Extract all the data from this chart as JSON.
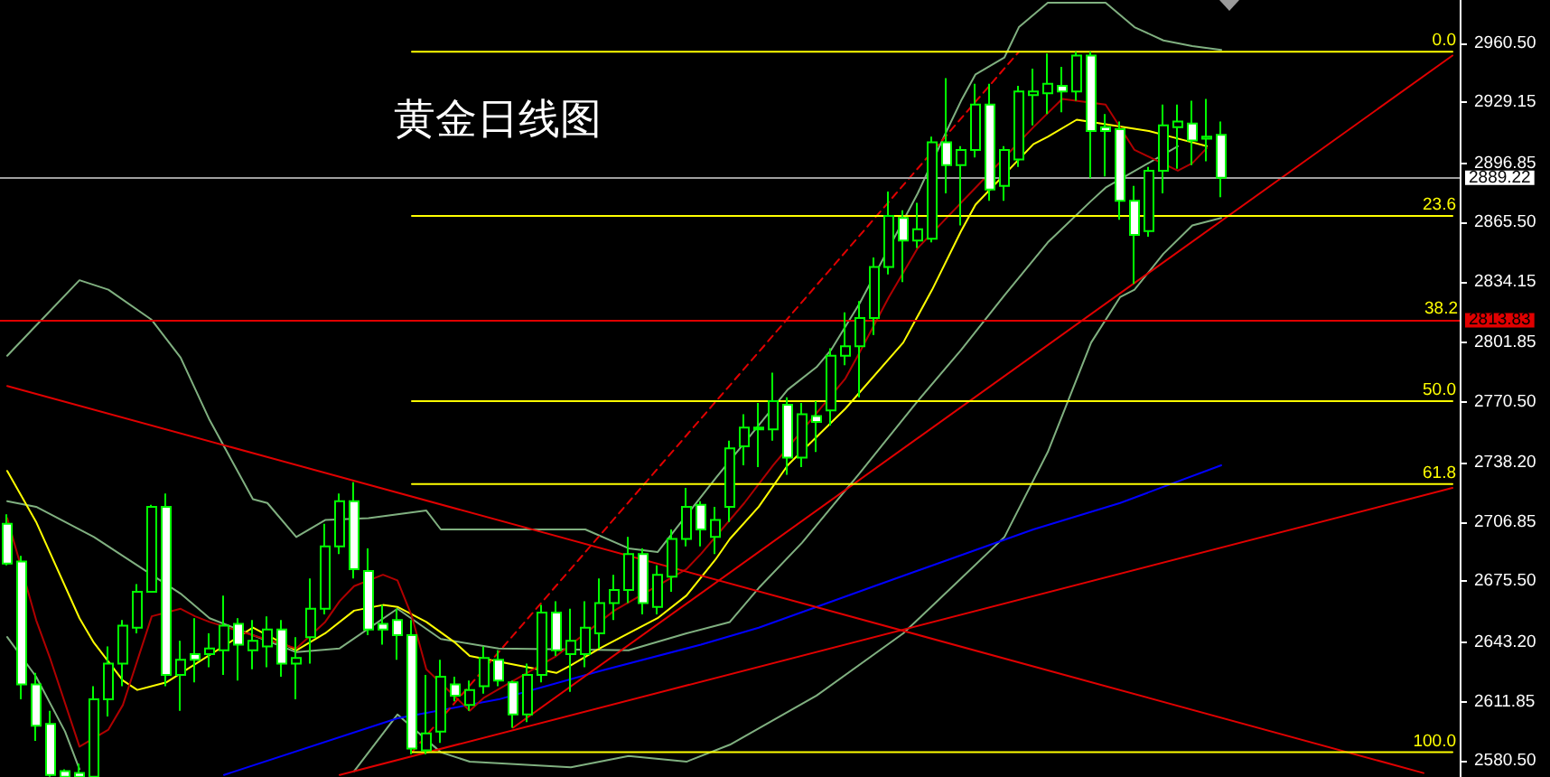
{
  "chart_data": {
    "type": "candlestick",
    "title": "黄金日线图",
    "categories": [
      null,
      null,
      null,
      null,
      null,
      null,
      null,
      null,
      null,
      null,
      null,
      null,
      null,
      null,
      null,
      null,
      null,
      null,
      null,
      null,
      null,
      null,
      null,
      null,
      null,
      null,
      null,
      null,
      null,
      null,
      null,
      null,
      null,
      null,
      null,
      null,
      null,
      null,
      null,
      null,
      null,
      null,
      null,
      null,
      null,
      null,
      null,
      null,
      null,
      null,
      null,
      null,
      null,
      null,
      null,
      null,
      null,
      null,
      null,
      null,
      null,
      null,
      null,
      null,
      null,
      null,
      null,
      null,
      null,
      null,
      null,
      null,
      null,
      null,
      null,
      null,
      null,
      null,
      null,
      null,
      null,
      null,
      null,
      null,
      null,
      null,
      null,
      null,
      null,
      null,
      null,
      null,
      null,
      null,
      null,
      null,
      null,
      null,
      null,
      null,
      null
    ],
    "ylim": [
      2571.9,
      2983.4
    ],
    "yticks": [
      {
        "value": 2960.5,
        "label": "2960.50"
      },
      2929.15,
      2896.85,
      {
        "value": 2865.5,
        "label": "2865.50"
      },
      2834.15,
      2801.85,
      {
        "value": 2770.5,
        "label": "2770.50"
      },
      {
        "value": 2738.2,
        "label": "2738.20"
      },
      2706.85,
      {
        "value": 2675.5,
        "label": "2675.50"
      },
      {
        "value": 2643.2,
        "label": "2643.20"
      },
      2611.85,
      {
        "value": 2580.5,
        "label": "2580.50"
      }
    ],
    "tick_labels": "y",
    "ref_lines": [
      {
        "axis": "y",
        "value": 2889.22,
        "label": "2889.22",
        "color": "#a0a0a0"
      },
      {
        "axis": "y",
        "value": 2813.83,
        "label": "2813.83",
        "color": "#e00000"
      }
    ],
    "annotations": [
      {
        "text": "38.2",
        "y": 2813.83
      }
    ],
    "series": [
      {
        "type": "line",
        "color": "#80b080",
        "values": [
          2795,
          null,
          2811,
          null,
          null,
          2835,
          null,
          2830,
          null,
          null,
          2814,
          null,
          2794,
          null,
          2761,
          null,
          2733,
          2719,
          2717,
          null,
          2699,
          null,
          2708,
          null,
          null,
          2709,
          null,
          null,
          null,
          2713,
          2703,
          null,
          null,
          null,
          null,
          null,
          null,
          null,
          null,
          null,
          2703,
          null,
          null,
          2693,
          null,
          2691,
          null,
          null,
          null,
          2730,
          null,
          null,
          null,
          null,
          2777,
          null,
          2789,
          2798,
          null,
          2823,
          null,
          null,
          null,
          2881,
          null,
          2914,
          2930,
          2944,
          null,
          2953,
          2969,
          null,
          2982,
          null,
          null,
          null,
          2982,
          null,
          2969,
          null,
          2962,
          null,
          2959,
          null,
          2957,
          null,
          null,
          null,
          null,
          null,
          null,
          null,
          null,
          null,
          null,
          null,
          null,
          null,
          null,
          null,
          null
        ]
      },
      {
        "type": "line",
        "color": "#80b080",
        "values": [
          2718,
          null,
          2715,
          null,
          null,
          null,
          2699,
          null,
          null,
          null,
          null,
          null,
          2669,
          null,
          2656,
          null,
          null,
          null,
          null,
          null,
          2638,
          null,
          null,
          2640,
          null,
          null,
          null,
          2661,
          null,
          null,
          2645,
          null,
          null,
          null,
          2640,
          null,
          null,
          null,
          null,
          null,
          null,
          null,
          null,
          2639,
          null,
          null,
          null,
          2648,
          null,
          null,
          2654,
          null,
          2672,
          null,
          null,
          2696,
          null,
          null,
          null,
          2733,
          null,
          null,
          null,
          2771,
          null,
          null,
          2798,
          null,
          null,
          2827,
          null,
          null,
          2855,
          null,
          null,
          2877,
          2884,
          null,
          null,
          null,
          null,
          2906,
          null,
          null,
          null,
          null,
          null,
          null,
          null,
          null,
          null,
          null,
          null,
          null,
          null,
          null,
          null,
          null,
          null,
          null,
          null
        ]
      },
      {
        "type": "line",
        "color": "#80b080",
        "values": [
          2646,
          null,
          2625,
          null,
          2596,
          2576,
          null,
          null,
          null,
          null,
          null,
          null,
          null,
          null,
          null,
          null,
          null,
          null,
          null,
          null,
          null,
          null,
          null,
          null,
          null,
          null,
          null,
          null,
          null,
          null,
          null,
          null,
          null,
          null,
          null,
          null,
          null,
          null,
          null,
          null,
          null,
          null,
          null,
          null,
          null,
          null,
          null,
          null,
          null,
          null,
          null,
          null,
          null,
          null,
          null,
          null,
          null,
          null,
          null,
          null,
          null,
          null,
          null,
          null,
          null,
          null,
          null,
          null,
          null,
          null,
          null,
          null,
          null,
          null,
          null,
          null,
          null,
          null,
          null,
          null,
          null,
          null,
          null,
          null,
          null,
          null,
          null,
          null,
          null,
          null,
          null,
          null,
          null,
          null,
          null,
          null,
          null,
          null,
          null,
          null,
          null
        ]
      },
      {
        "type": "line",
        "color": "#80b080",
        "values": [
          null,
          null,
          null,
          null,
          null,
          null,
          null,
          null,
          null,
          null,
          null,
          null,
          null,
          null,
          null,
          null,
          null,
          null,
          null,
          null,
          null,
          null,
          null,
          null,
          2575,
          null,
          null,
          2605,
          null,
          null,
          2585,
          null,
          2580,
          null,
          null,
          null,
          null,
          null,
          null,
          2577,
          null,
          null,
          null,
          2583,
          null,
          null,
          null,
          2580,
          null,
          null,
          2589,
          null,
          null,
          null,
          null,
          null,
          2615,
          null,
          null,
          null,
          null,
          null,
          2648,
          null,
          null,
          null,
          2677,
          null,
          null,
          2699,
          null,
          null,
          2744,
          null,
          null,
          2802,
          null,
          2826,
          2830,
          null,
          2849,
          null,
          2864,
          null,
          2868,
          null,
          null,
          null,
          null,
          null,
          null,
          null,
          null,
          null,
          null,
          null,
          null,
          null,
          null,
          null,
          null
        ]
      },
      {
        "type": "line",
        "color": "#0000ff",
        "values": [
          null,
          null,
          null,
          null,
          null,
          null,
          null,
          null,
          null,
          null,
          null,
          null,
          null,
          null,
          null,
          2573,
          null,
          null,
          null,
          null,
          null,
          null,
          null,
          null,
          null,
          null,
          null,
          2603,
          null,
          null,
          null,
          null,
          null,
          null,
          2613,
          null,
          null,
          null,
          null,
          null,
          null,
          2628,
          null,
          null,
          null,
          null,
          null,
          null,
          2642,
          null,
          null,
          null,
          2651,
          null,
          null,
          null,
          null,
          null,
          null,
          null,
          2673,
          null,
          null,
          null,
          null,
          null,
          null,
          null,
          null,
          null,
          null,
          2703,
          null,
          null,
          null,
          null,
          null,
          2717,
          null,
          null,
          null,
          null,
          null,
          null,
          2737,
          null,
          null,
          null,
          null,
          null,
          null,
          null,
          null,
          null,
          null,
          null,
          null,
          null,
          null,
          null,
          null
        ]
      },
      {
        "type": "line",
        "color": "#ffff00",
        "values": [
          2734,
          null,
          2707,
          null,
          null,
          2656,
          2643,
          null,
          2623,
          2618,
          null,
          2622,
          null,
          null,
          null,
          null,
          null,
          2651,
          null,
          null,
          2639,
          null,
          2648,
          null,
          2660,
          null,
          2663,
          2662,
          null,
          2654,
          null,
          2643,
          2636,
          null,
          null,
          null,
          null,
          null,
          2627,
          2631,
          null,
          2640,
          null,
          2648,
          null,
          2656,
          null,
          2668,
          null,
          2687,
          2698,
          null,
          2715,
          null,
          2737,
          null,
          null,
          null,
          2767,
          null,
          null,
          null,
          2802,
          null,
          2830,
          null,
          2861,
          2875,
          null,
          null,
          null,
          2907,
          2911,
          null,
          2920,
          null,
          null,
          null,
          null,
          2914,
          null,
          2910,
          null,
          2906,
          null,
          null,
          null,
          null,
          null,
          null,
          null,
          null,
          null,
          null,
          null,
          null,
          null,
          null,
          null,
          null,
          null
        ]
      },
      {
        "type": "line",
        "color": "#b00000",
        "values": [
          2709,
          null,
          2655,
          2634,
          null,
          2588,
          null,
          2597,
          2610,
          null,
          2657,
          null,
          2661,
          2657,
          2654,
          null,
          null,
          null,
          null,
          null,
          2640,
          null,
          2654,
          2665,
          2673,
          null,
          2679,
          2676,
          2657,
          2629,
          null,
          null,
          2607,
          2614,
          null,
          null,
          null,
          null,
          2636,
          null,
          null,
          null,
          2660,
          null,
          null,
          null,
          null,
          2682,
          2690,
          null,
          null,
          2717,
          null,
          2737,
          null,
          null,
          null,
          null,
          2783,
          2797,
          null,
          2826,
          null,
          2852,
          null,
          2868,
          null,
          2884,
          null,
          null,
          null,
          2916,
          null,
          2931,
          null,
          null,
          2928,
          null,
          2904,
          null,
          null,
          2893,
          2897,
          2905,
          null,
          null,
          null,
          null,
          null,
          null,
          null,
          null,
          null,
          null,
          null,
          null,
          null,
          null,
          null,
          null,
          null
        ]
      },
      {
        "type": "line",
        "color": "#e00000",
        "values": [
          2779,
          null,
          null,
          null,
          null,
          null,
          null,
          null,
          null,
          null,
          null,
          null,
          null,
          null,
          null,
          null,
          null,
          null,
          null,
          null,
          null,
          null,
          null,
          null,
          null,
          null,
          null,
          null,
          null,
          null,
          null,
          null,
          null,
          null,
          null,
          null,
          null,
          null,
          null,
          null,
          null,
          null,
          null,
          null,
          null,
          null,
          null,
          null,
          null,
          null,
          null,
          null,
          null,
          null,
          null,
          null,
          null,
          null,
          null,
          null,
          null,
          null,
          null,
          null,
          null,
          null,
          null,
          null,
          null,
          null,
          null,
          null,
          null,
          null,
          null,
          null,
          null,
          null,
          null,
          null,
          null,
          null,
          null,
          null,
          null,
          null,
          null,
          null,
          null,
          null,
          null,
          null,
          null,
          null,
          null,
          null,
          null,
          null,
          2574,
          null,
          null
        ]
      },
      {
        "type": "line",
        "color": "#e00000",
        "values": [
          null,
          null,
          null,
          null,
          null,
          null,
          null,
          null,
          null,
          null,
          null,
          null,
          null,
          null,
          null,
          null,
          null,
          null,
          null,
          null,
          null,
          null,
          null,
          2573,
          null,
          null,
          null,
          null,
          null,
          null,
          null,
          null,
          null,
          null,
          null,
          null,
          null,
          null,
          null,
          null,
          null,
          null,
          null,
          null,
          null,
          null,
          null,
          null,
          null,
          null,
          null,
          null,
          null,
          null,
          null,
          null,
          null,
          null,
          null,
          null,
          null,
          null,
          null,
          null,
          null,
          null,
          null,
          null,
          null,
          null,
          null,
          null,
          null,
          null,
          null,
          null,
          null,
          null,
          null,
          null,
          null,
          null,
          null,
          null,
          null,
          null,
          null,
          null,
          null,
          null,
          null,
          null,
          null,
          null,
          null,
          null,
          null,
          null,
          null,
          null,
          2725
        ]
      },
      {
        "type": "line",
        "color": "#e00000",
        "values": [
          null,
          null,
          null,
          null,
          null,
          null,
          null,
          null,
          null,
          null,
          null,
          null,
          null,
          null,
          null,
          null,
          null,
          null,
          null,
          null,
          null,
          null,
          null,
          null,
          null,
          null,
          null,
          null,
          null,
          null,
          null,
          null,
          null,
          null,
          null,
          2598,
          null,
          null,
          null,
          null,
          null,
          null,
          null,
          null,
          null,
          null,
          null,
          null,
          null,
          null,
          null,
          null,
          null,
          null,
          null,
          null,
          null,
          null,
          null,
          null,
          null,
          null,
          null,
          null,
          null,
          null,
          null,
          null,
          null,
          null,
          null,
          null,
          null,
          null,
          null,
          null,
          null,
          null,
          null,
          null,
          null,
          null,
          null,
          null,
          null,
          null,
          null,
          null,
          null,
          null,
          null,
          null,
          null,
          null,
          null,
          null,
          null,
          null,
          null,
          null,
          2954
        ]
      },
      {
        "type": "line",
        "color": "#e00000",
        "line_style": "dashed",
        "values": [
          null,
          null,
          null,
          null,
          null,
          null,
          null,
          null,
          null,
          null,
          null,
          null,
          null,
          null,
          null,
          null,
          null,
          null,
          null,
          null,
          null,
          null,
          null,
          null,
          null,
          null,
          null,
          null,
          2585,
          null,
          null,
          null,
          null,
          null,
          null,
          null,
          null,
          null,
          null,
          null,
          null,
          null,
          null,
          null,
          null,
          null,
          null,
          null,
          null,
          null,
          null,
          null,
          null,
          null,
          null,
          null,
          null,
          null,
          null,
          null,
          null,
          null,
          null,
          null,
          null,
          null,
          null,
          null,
          null,
          null,
          2956,
          null,
          null,
          null,
          null,
          null,
          null,
          null,
          null,
          null,
          null,
          null,
          null,
          null,
          null,
          null,
          null,
          null,
          null,
          null,
          null,
          null,
          null,
          null,
          null,
          null,
          null,
          null,
          null,
          null,
          null
        ]
      },
      {
        "type": "line",
        "name": "0.0",
        "color": "#ffff00",
        "values": [
          null,
          null,
          null,
          null,
          null,
          null,
          null,
          null,
          null,
          null,
          null,
          null,
          null,
          null,
          null,
          null,
          null,
          null,
          null,
          null,
          null,
          null,
          null,
          null,
          null,
          null,
          null,
          null,
          2956,
          null,
          null,
          null,
          null,
          null,
          null,
          null,
          null,
          null,
          null,
          null,
          null,
          null,
          null,
          null,
          null,
          null,
          null,
          null,
          null,
          null,
          null,
          null,
          null,
          null,
          null,
          null,
          null,
          null,
          null,
          null,
          null,
          null,
          null,
          null,
          null,
          null,
          null,
          null,
          null,
          null,
          null,
          null,
          null,
          null,
          null,
          null,
          null,
          null,
          null,
          null,
          null,
          null,
          null,
          null,
          null,
          null,
          null,
          null,
          null,
          null,
          null,
          null,
          null,
          null,
          null,
          null,
          null,
          null,
          null,
          null,
          2956
        ]
      },
      {
        "type": "line",
        "name": "23.6",
        "color": "#ffff00",
        "values": [
          null,
          null,
          null,
          null,
          null,
          null,
          null,
          null,
          null,
          null,
          null,
          null,
          null,
          null,
          null,
          null,
          null,
          null,
          null,
          null,
          null,
          null,
          null,
          null,
          null,
          null,
          null,
          null,
          2869,
          null,
          null,
          null,
          null,
          null,
          null,
          null,
          null,
          null,
          null,
          null,
          null,
          null,
          null,
          null,
          null,
          null,
          null,
          null,
          null,
          null,
          null,
          null,
          null,
          null,
          null,
          null,
          null,
          null,
          null,
          null,
          null,
          null,
          null,
          null,
          null,
          null,
          null,
          null,
          null,
          null,
          null,
          null,
          null,
          null,
          null,
          null,
          null,
          null,
          null,
          null,
          null,
          null,
          null,
          null,
          null,
          null,
          null,
          null,
          null,
          null,
          null,
          null,
          null,
          null,
          null,
          null,
          null,
          null,
          null,
          null,
          2869
        ]
      },
      {
        "type": "line",
        "name": "50.0",
        "color": "#ffff00",
        "values": [
          null,
          null,
          null,
          null,
          null,
          null,
          null,
          null,
          null,
          null,
          null,
          null,
          null,
          null,
          null,
          null,
          null,
          null,
          null,
          null,
          null,
          null,
          null,
          null,
          null,
          null,
          null,
          null,
          2771,
          null,
          null,
          null,
          null,
          null,
          null,
          null,
          null,
          null,
          null,
          null,
          null,
          null,
          null,
          null,
          null,
          null,
          null,
          null,
          null,
          null,
          null,
          null,
          null,
          null,
          null,
          null,
          null,
          null,
          null,
          null,
          null,
          null,
          null,
          null,
          null,
          null,
          null,
          null,
          null,
          null,
          null,
          null,
          null,
          null,
          null,
          null,
          null,
          null,
          null,
          null,
          null,
          null,
          null,
          null,
          null,
          null,
          null,
          null,
          null,
          null,
          null,
          null,
          null,
          null,
          null,
          null,
          null,
          null,
          null,
          null,
          2771
        ]
      },
      {
        "type": "line",
        "name": "61.8",
        "color": "#ffff00",
        "values": [
          null,
          null,
          null,
          null,
          null,
          null,
          null,
          null,
          null,
          null,
          null,
          null,
          null,
          null,
          null,
          null,
          null,
          null,
          null,
          null,
          null,
          null,
          null,
          null,
          null,
          null,
          null,
          null,
          2727,
          null,
          null,
          null,
          null,
          null,
          null,
          null,
          null,
          null,
          null,
          null,
          null,
          null,
          null,
          null,
          null,
          null,
          null,
          null,
          null,
          null,
          null,
          null,
          null,
          null,
          null,
          null,
          null,
          null,
          null,
          null,
          null,
          null,
          null,
          null,
          null,
          null,
          null,
          null,
          null,
          null,
          null,
          null,
          null,
          null,
          null,
          null,
          null,
          null,
          null,
          null,
          null,
          null,
          null,
          null,
          null,
          null,
          null,
          null,
          null,
          null,
          null,
          null,
          null,
          null,
          null,
          null,
          null,
          null,
          null,
          null,
          2727
        ]
      },
      {
        "type": "line",
        "name": "100.0",
        "color": "#ffff00",
        "values": [
          null,
          null,
          null,
          null,
          null,
          null,
          null,
          null,
          null,
          null,
          null,
          null,
          null,
          null,
          null,
          null,
          null,
          null,
          null,
          null,
          null,
          null,
          null,
          null,
          null,
          null,
          null,
          null,
          2585,
          null,
          null,
          null,
          null,
          null,
          null,
          null,
          null,
          null,
          null,
          null,
          null,
          null,
          null,
          null,
          null,
          null,
          null,
          null,
          null,
          null,
          null,
          null,
          null,
          null,
          null,
          null,
          null,
          null,
          null,
          null,
          null,
          null,
          null,
          null,
          null,
          null,
          null,
          null,
          null,
          null,
          null,
          null,
          null,
          null,
          null,
          null,
          null,
          null,
          null,
          null,
          null,
          null,
          null,
          null,
          null,
          null,
          null,
          null,
          null,
          null,
          null,
          null,
          null,
          null,
          null,
          null,
          null,
          null,
          null,
          null,
          2585
        ]
      },
      {
        "type": "candlestick",
        "color": "#00ff00",
        "ohlc": [
          [
            2706,
            2711,
            2684,
            2685
          ],
          [
            2686,
            2689,
            2613,
            2621
          ],
          [
            2621,
            2627,
            2591,
            2599
          ],
          [
            2600,
            2607,
            2572,
            2573
          ],
          [
            2575,
            2576,
            2572,
            2572
          ],
          [
            2574,
            2579,
            2572,
            2572
          ],
          [
            2572,
            2620,
            2572,
            2613
          ],
          [
            2613,
            2641,
            2604,
            2632
          ],
          [
            2632,
            2655,
            2620,
            2652
          ],
          [
            2651,
            2674,
            2648,
            2670
          ],
          [
            2670,
            2716,
            2670,
            2715
          ],
          [
            2715,
            2722,
            2620,
            2626
          ],
          [
            2626,
            2644,
            2607,
            2634
          ],
          [
            2637,
            2656,
            2622,
            2634
          ],
          [
            2637,
            2648,
            2630,
            2640
          ],
          [
            2639,
            2668,
            2626,
            2652
          ],
          [
            2653,
            2656,
            2623,
            2642
          ],
          [
            2639,
            2655,
            2629,
            2644
          ],
          [
            2641,
            2657,
            2630,
            2650
          ],
          [
            2650,
            2655,
            2625,
            2632
          ],
          [
            2632,
            2646,
            2613,
            2635
          ],
          [
            2646,
            2677,
            2632,
            2661
          ],
          [
            2661,
            2706,
            2658,
            2694
          ],
          [
            2694,
            2722,
            2690,
            2718
          ],
          [
            2718,
            2728,
            2677,
            2682
          ],
          [
            2681,
            2693,
            2647,
            2650
          ],
          [
            2653,
            2663,
            2642,
            2650
          ],
          [
            2655,
            2661,
            2634,
            2647
          ],
          [
            2647,
            2655,
            2584,
            2587
          ],
          [
            2586,
            2626,
            2584,
            2595
          ],
          [
            2596,
            2634,
            2590,
            2625
          ],
          [
            2621,
            2625,
            2612,
            2615
          ],
          [
            2610,
            2623,
            2607,
            2618
          ],
          [
            2620,
            2641,
            2616,
            2635
          ],
          [
            2634,
            2639,
            2620,
            2623
          ],
          [
            2622,
            2623,
            2598,
            2605
          ],
          [
            2605,
            2632,
            2601,
            2626
          ],
          [
            2626,
            2663,
            2622,
            2659
          ],
          [
            2659,
            2665,
            2636,
            2639
          ],
          [
            2637,
            2661,
            2617,
            2644
          ],
          [
            2637,
            2665,
            2630,
            2651
          ],
          [
            2648,
            2677,
            2640,
            2664
          ],
          [
            2664,
            2679,
            2655,
            2671
          ],
          [
            2671,
            2699,
            2664,
            2690
          ],
          [
            2690,
            2693,
            2658,
            2664
          ],
          [
            2662,
            2684,
            2658,
            2679
          ],
          [
            2678,
            2703,
            2670,
            2698
          ],
          [
            2698,
            2725,
            2694,
            2715
          ],
          [
            2716,
            2718,
            2694,
            2703
          ],
          [
            2699,
            2715,
            2690,
            2708
          ],
          [
            2715,
            2750,
            2707,
            2746
          ],
          [
            2747,
            2764,
            2737,
            2757
          ],
          [
            2757,
            2770,
            2736,
            2756
          ],
          [
            2756,
            2786,
            2750,
            2771
          ],
          [
            2769,
            2773,
            2732,
            2741
          ],
          [
            2741,
            2770,
            2736,
            2764
          ],
          [
            2763,
            2771,
            2744,
            2760
          ],
          [
            2766,
            2799,
            2758,
            2795
          ],
          [
            2795,
            2818,
            2790,
            2800
          ],
          [
            2800,
            2824,
            2773,
            2815
          ],
          [
            2815,
            2847,
            2806,
            2842
          ],
          [
            2842,
            2882,
            2838,
            2869
          ],
          [
            2868,
            2872,
            2834,
            2856
          ],
          [
            2856,
            2876,
            2852,
            2862
          ],
          [
            2857,
            2911,
            2855,
            2908
          ],
          [
            2908,
            2942,
            2881,
            2896
          ],
          [
            2896,
            2906,
            2864,
            2904
          ],
          [
            2904,
            2939,
            2900,
            2928
          ],
          [
            2928,
            2939,
            2877,
            2883
          ],
          [
            2885,
            2906,
            2877,
            2904
          ],
          [
            2899,
            2938,
            2895,
            2935
          ],
          [
            2933,
            2947,
            2917,
            2935
          ],
          [
            2934,
            2955,
            2923,
            2939
          ],
          [
            2938,
            2948,
            2924,
            2935
          ],
          [
            2935,
            2956,
            2930,
            2954
          ],
          [
            2954,
            2956,
            2889,
            2914
          ],
          [
            2916,
            2923,
            2890,
            2914
          ],
          [
            2915,
            2919,
            2867,
            2877
          ],
          [
            2877,
            2885,
            2833,
            2859
          ],
          [
            2861,
            2895,
            2858,
            2893
          ],
          [
            2893,
            2928,
            2881,
            2917
          ],
          [
            2916,
            2928,
            2894,
            2919
          ],
          [
            2918,
            2930,
            2896,
            2909
          ],
          [
            2910,
            2931,
            2898,
            2911
          ],
          [
            2912,
            2919,
            2879,
            2889.22
          ],
          null,
          null,
          null,
          null,
          null,
          null,
          null,
          null,
          null,
          null,
          null,
          null,
          null,
          null,
          null,
          null
        ]
      }
    ]
  }
}
